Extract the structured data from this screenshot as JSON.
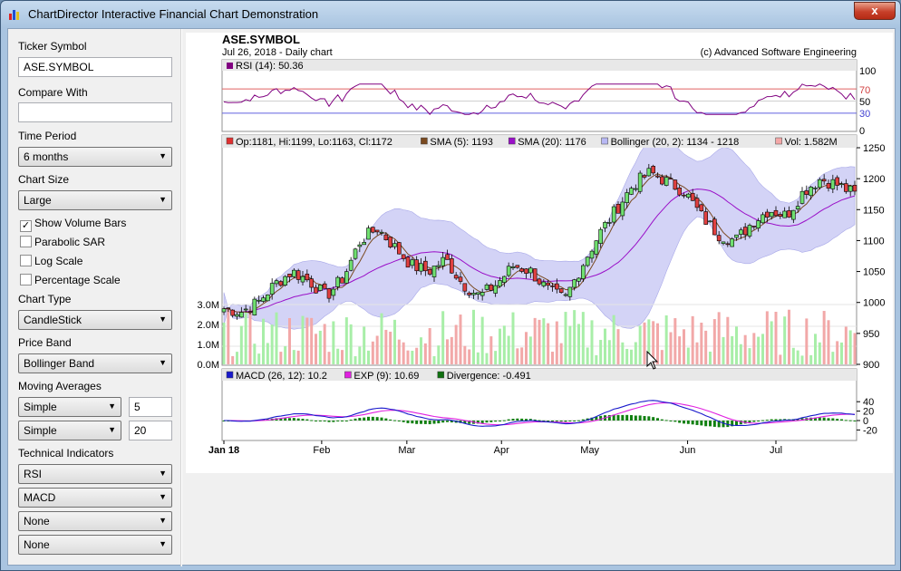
{
  "window": {
    "title": "ChartDirector Interactive Financial Chart Demonstration",
    "close_glyph": "x"
  },
  "sidebar": {
    "ticker_label": "Ticker Symbol",
    "ticker_value": "ASE.SYMBOL",
    "compare_label": "Compare With",
    "compare_value": "",
    "period_label": "Time Period",
    "period_value": "6 months",
    "size_label": "Chart Size",
    "size_value": "Large",
    "checkboxes": [
      {
        "label": "Show Volume Bars",
        "checked": true
      },
      {
        "label": "Parabolic SAR",
        "checked": false
      },
      {
        "label": "Log Scale",
        "checked": false
      },
      {
        "label": "Percentage Scale",
        "checked": false
      }
    ],
    "chart_type_label": "Chart Type",
    "chart_type_value": "CandleStick",
    "price_band_label": "Price Band",
    "price_band_value": "Bollinger Band",
    "ma_label": "Moving Averages",
    "ma1_type": "Simple",
    "ma1_period": "5",
    "ma2_type": "Simple",
    "ma2_period": "20",
    "ti_label": "Technical Indicators",
    "indicators": [
      "RSI",
      "MACD",
      "None",
      "None"
    ]
  },
  "chart": {
    "title": "ASE.SYMBOL",
    "subtitle": "Jul 26, 2018 - Daily chart",
    "copyright": "(c) Advanced Software Engineering",
    "rsi_legend": "RSI (14): 50.36",
    "rsi_ticks": [
      "100",
      "70",
      "50",
      "30",
      "0"
    ],
    "main_legend": [
      {
        "text": "Op:1181, Hi:1199, Lo:1163, Cl:1172",
        "color": "#e03030"
      },
      {
        "text": "SMA (5): 1193",
        "color": "#7a4a20"
      },
      {
        "text": "SMA (20): 1176",
        "color": "#9a10c8"
      },
      {
        "text": "Bollinger (20, 2): 1134 - 1218",
        "color": "#b8b8f4"
      },
      {
        "text": "Vol: 1.582M",
        "color": "#f4a8a8"
      }
    ],
    "price_ticks": [
      "1250",
      "1200",
      "1150",
      "1100",
      "1050",
      "1000",
      "950",
      "900"
    ],
    "volume_ticks": [
      "3.0M",
      "2.0M",
      "1.0M",
      "0.0M"
    ],
    "macd_legend": [
      {
        "text": "MACD (26, 12): 10.2",
        "color": "#1a1acc"
      },
      {
        "text": "EXP (9): 10.69",
        "color": "#e020e0"
      },
      {
        "text": "Divergence: -0.491",
        "color": "#107010"
      }
    ],
    "macd_ticks": [
      "40",
      "20",
      "0",
      "-20"
    ],
    "x_ticks": [
      "Jan 18",
      "Feb",
      "Mar",
      "Apr",
      "May",
      "Jun",
      "Jul"
    ],
    "colors": {
      "up": "#70e070",
      "down": "#e04040",
      "band": "#c8c8f4",
      "sma5": "#7a4a20",
      "sma20": "#9a10c8",
      "rsi": "#800080",
      "macd": "#1a1acc",
      "exp": "#e020e0",
      "div": "#108010",
      "vol_up": "#a8eea8",
      "vol_down": "#f2a8a8"
    }
  },
  "chart_data": {
    "type": "candlestick",
    "ylim": [
      900,
      1250
    ],
    "x_labels": [
      "Jan 18",
      "Feb",
      "Mar",
      "Apr",
      "May",
      "Jun",
      "Jul"
    ],
    "close_anchors": [
      990,
      985,
      1000,
      1030,
      1050,
      1035,
      1010,
      1040,
      1100,
      1120,
      1090,
      1060,
      1050,
      1070,
      1030,
      1010,
      1030,
      1060,
      1050,
      1020,
      1005,
      1060,
      1110,
      1150,
      1190,
      1210,
      1195,
      1180,
      1140,
      1110,
      1100,
      1130,
      1150,
      1140,
      1180,
      1200,
      1190,
      1175
    ],
    "rsi_latest": 50.36,
    "macd_latest": 10.2,
    "exp_latest": 10.69,
    "divergence_latest": -0.491
  }
}
